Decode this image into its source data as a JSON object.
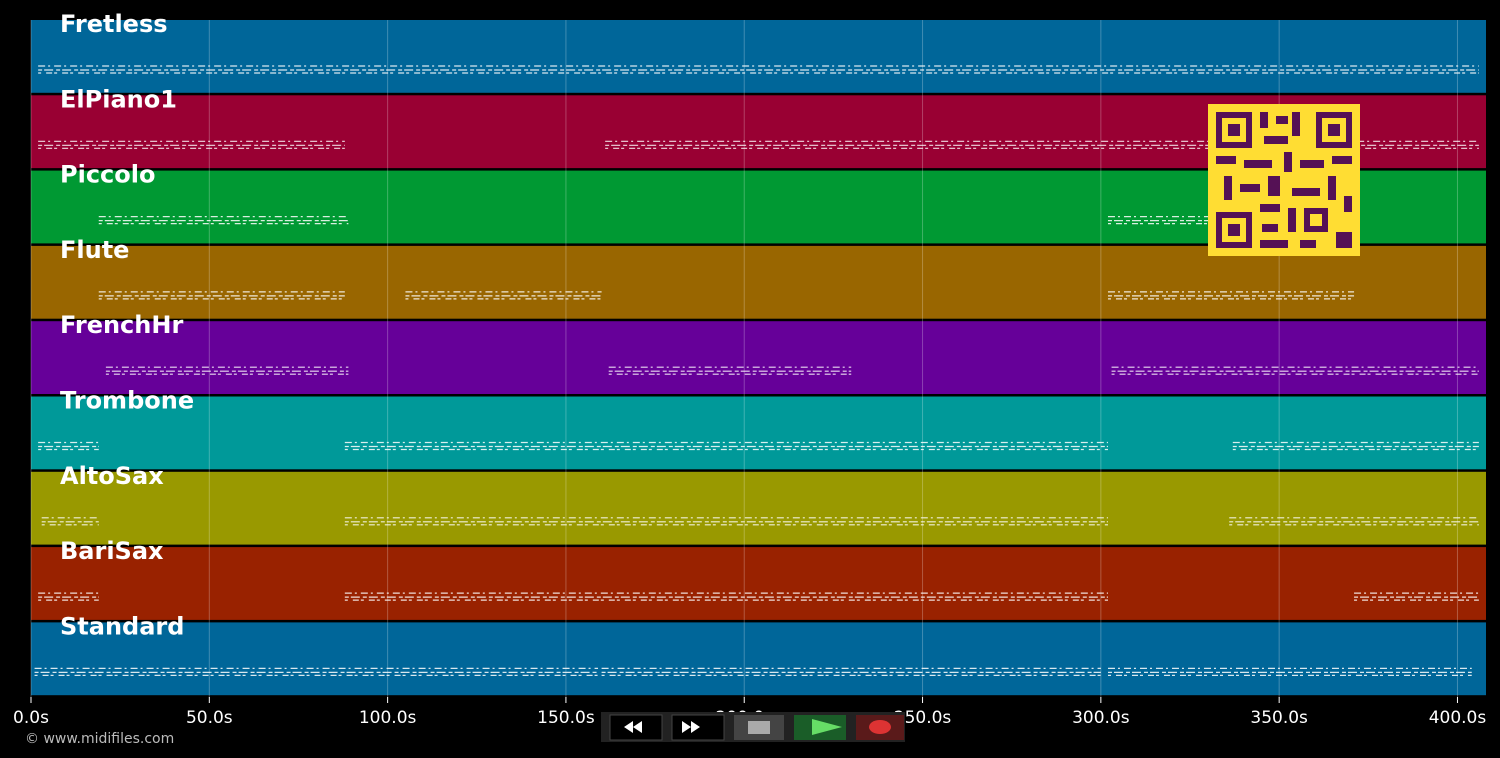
{
  "chart_data": {
    "type": "timeline",
    "xlim": [
      0,
      408
    ],
    "xticks": [
      {
        "value": 0,
        "label": "0.0s"
      },
      {
        "value": 50,
        "label": "50.0s"
      },
      {
        "value": 100,
        "label": "100.0s"
      },
      {
        "value": 150,
        "label": "150.0s"
      },
      {
        "value": 200,
        "label": "200.0s"
      },
      {
        "value": 250,
        "label": "250.0s"
      },
      {
        "value": 300,
        "label": "300.0s"
      },
      {
        "value": 350,
        "label": "350.0s"
      },
      {
        "value": 400,
        "label": "400.0s"
      }
    ],
    "tracks": [
      {
        "name": "Fretless",
        "color": "#006699",
        "spans": [
          [
            2,
            406
          ]
        ]
      },
      {
        "name": "ElPiano1",
        "color": "#990033",
        "spans": [
          [
            2,
            88
          ],
          [
            161,
            406
          ]
        ]
      },
      {
        "name": "Piccolo",
        "color": "#009933",
        "spans": [
          [
            19,
            89
          ],
          [
            302,
            345
          ]
        ]
      },
      {
        "name": "Flute",
        "color": "#996600",
        "spans": [
          [
            19,
            88
          ],
          [
            105,
            160
          ],
          [
            302,
            371
          ]
        ]
      },
      {
        "name": "FrenchHr",
        "color": "#660099",
        "spans": [
          [
            21,
            89
          ],
          [
            162,
            230
          ],
          [
            303,
            406
          ]
        ]
      },
      {
        "name": "Trombone",
        "color": "#009999",
        "spans": [
          [
            2,
            19
          ],
          [
            88,
            302
          ],
          [
            337,
            406
          ]
        ]
      },
      {
        "name": "AltoSax",
        "color": "#999900",
        "spans": [
          [
            3,
            19
          ],
          [
            88,
            302
          ],
          [
            336,
            406
          ]
        ]
      },
      {
        "name": "BariSax",
        "color": "#992200",
        "spans": [
          [
            2,
            19
          ],
          [
            88,
            302
          ],
          [
            371,
            406
          ]
        ]
      },
      {
        "name": "Standard",
        "color": "#006699",
        "spans": [
          [
            1,
            159
          ],
          [
            160,
            300
          ],
          [
            302,
            404
          ]
        ]
      }
    ]
  },
  "footer": {
    "copyright": "© www.midifiles.com"
  }
}
